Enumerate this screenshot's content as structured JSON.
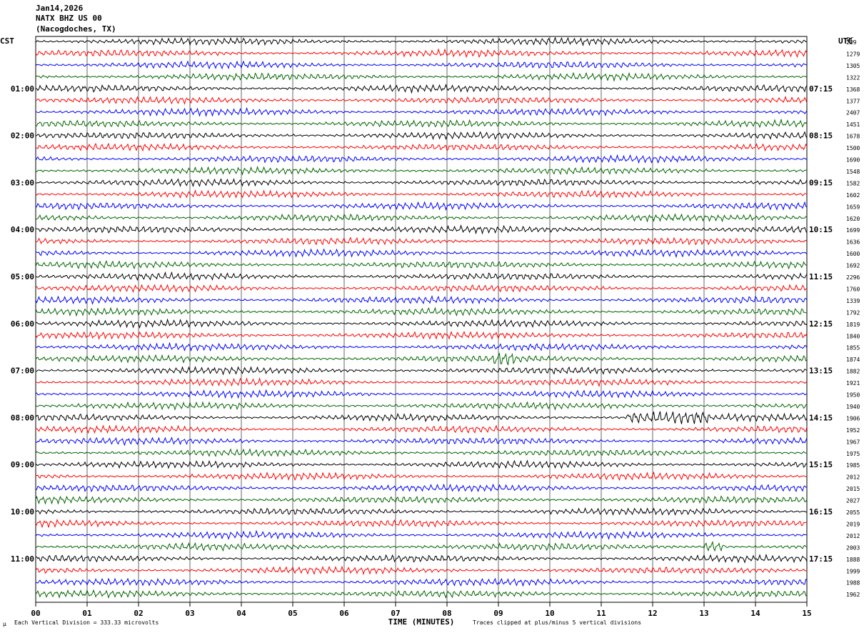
{
  "header": {
    "date": "Jan14,2026",
    "station": "NATX BHZ US 00",
    "location": "(Nacogdoches, TX)"
  },
  "axis_labels": {
    "left_timezone": "CST",
    "right_timezone": "UTC",
    "right_column": "DC"
  },
  "footer": {
    "scale_note": "Each Vertical Division =  333.33 microvolts",
    "clip_note": "Traces clipped at plus/minus 5 vertical divisions",
    "corner_mark": "μ"
  },
  "colors": {
    "cycle": [
      "#000000",
      "#ff0000",
      "#0000ff",
      "#006400"
    ]
  },
  "chart_data": {
    "type": "line",
    "title": "",
    "xlabel": "TIME (MINUTES)",
    "xlim": [
      0,
      15
    ],
    "x_ticks": [
      "00",
      "01",
      "02",
      "03",
      "04",
      "05",
      "06",
      "07",
      "08",
      "09",
      "10",
      "11",
      "12",
      "13",
      "14",
      "15"
    ],
    "trace_count": 48,
    "minutes_per_trace": 15,
    "left_hour_labels": [
      "01:00",
      "02:00",
      "03:00",
      "04:00",
      "05:00",
      "06:00",
      "07:00",
      "08:00",
      "09:00",
      "10:00",
      "11:00"
    ],
    "right_hour_labels": [
      "07:15",
      "08:15",
      "09:15",
      "10:15",
      "11:15",
      "12:15",
      "13:15",
      "14:15",
      "15:15",
      "16:15",
      "17:15"
    ],
    "dc_offsets": [
      "259",
      "1279",
      "1305",
      "1322",
      "1368",
      "1377",
      "2407",
      "1451",
      "1678",
      "1500",
      "1690",
      "1548",
      "1582",
      "1602",
      "1659",
      "1620",
      "1699",
      "1636",
      "1600",
      "1692",
      "2296",
      "1760",
      "1339",
      "1792",
      "1819",
      "1840",
      "1855",
      "1874",
      "1882",
      "1921",
      "1950",
      "1940",
      "1906",
      "1952",
      "1967",
      "1975",
      "1985",
      "2012",
      "2015",
      "2027",
      "2055",
      "2019",
      "2012",
      "2003",
      "1888",
      "1999",
      "1988",
      "1962"
    ],
    "events": [
      {
        "trace": 32,
        "start_min": 11.5,
        "end_min": 13.1,
        "label": ""
      },
      {
        "trace": 27,
        "start_min": 8.9,
        "end_min": 9.3,
        "label": ""
      },
      {
        "trace": 43,
        "start_min": 13.0,
        "end_min": 13.4,
        "label": ""
      }
    ]
  }
}
